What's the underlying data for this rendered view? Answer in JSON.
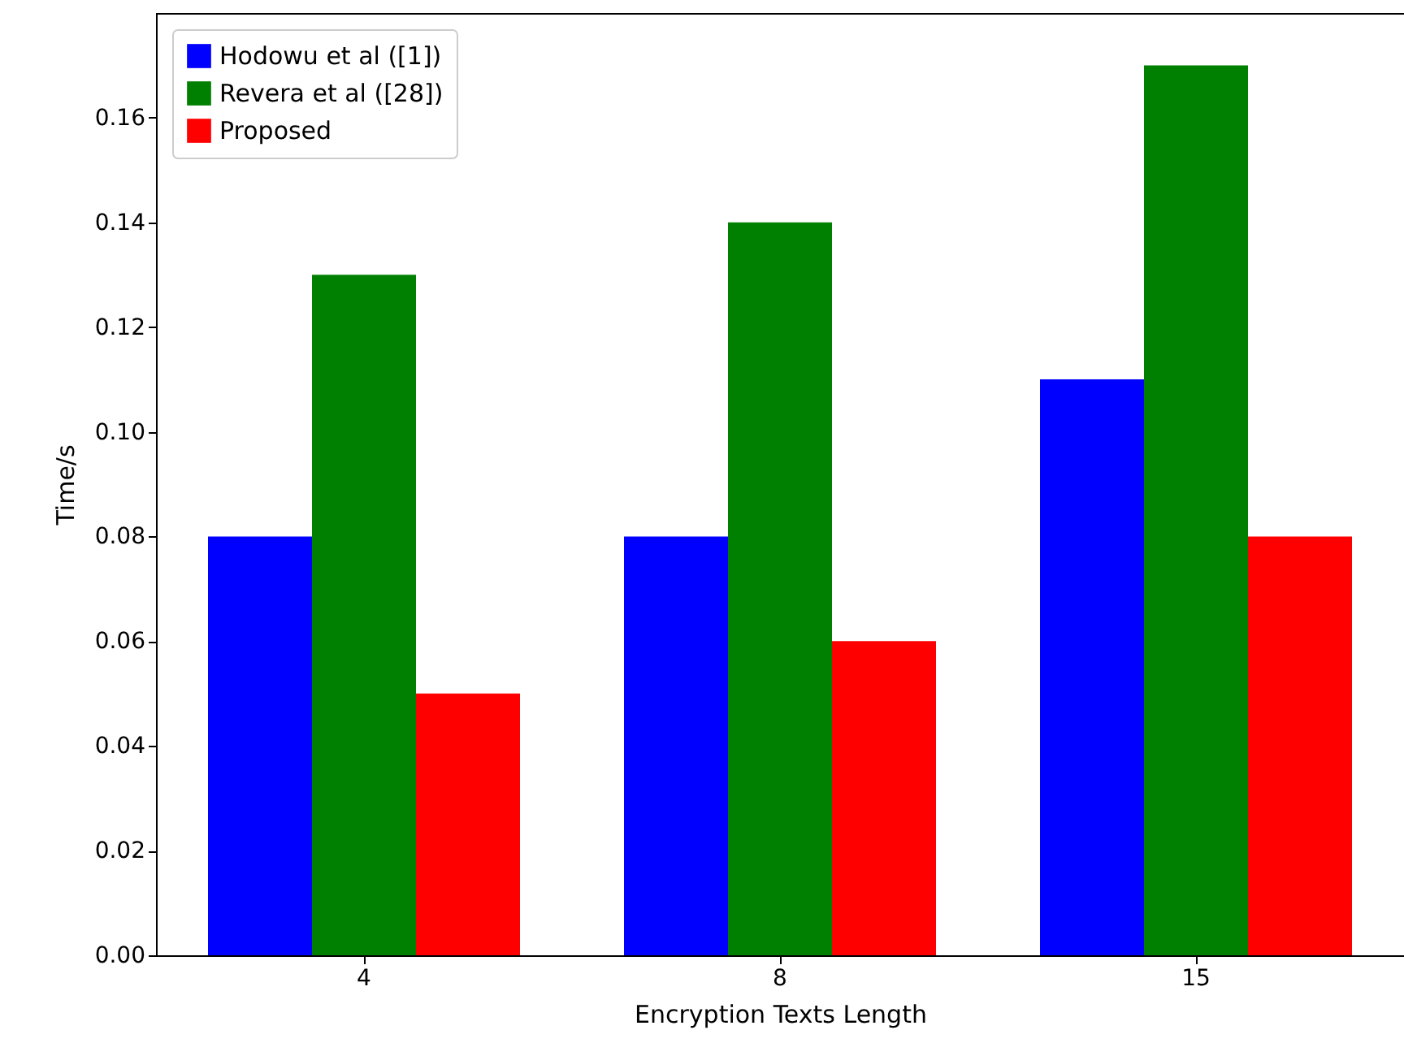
{
  "chart_data": {
    "type": "bar",
    "xlabel": "Encryption Texts Length",
    "ylabel": "Time/s",
    "categories": [
      "4",
      "8",
      "15"
    ],
    "series": [
      {
        "name": "Hodowu et al ([1])",
        "color": "#0000ff",
        "values": [
          0.08,
          0.08,
          0.11
        ]
      },
      {
        "name": "Revera et al ([28])",
        "color": "#008000",
        "values": [
          0.13,
          0.14,
          0.17
        ]
      },
      {
        "name": "Proposed",
        "color": "#ff0000",
        "values": [
          0.05,
          0.06,
          0.08
        ]
      }
    ],
    "ylim": [
      0,
      0.18
    ],
    "yticks": [
      {
        "value": 0,
        "label": "0.00"
      },
      {
        "value": 0.02,
        "label": "0.02"
      },
      {
        "value": 0.04,
        "label": "0.04"
      },
      {
        "value": 0.06,
        "label": "0.06"
      },
      {
        "value": 0.08,
        "label": "0.08"
      },
      {
        "value": 0.1,
        "label": "0.10"
      },
      {
        "value": 0.12,
        "label": "0.12"
      },
      {
        "value": 0.14,
        "label": "0.14"
      },
      {
        "value": 0.16,
        "label": "0.16"
      }
    ],
    "legend": "top left",
    "grid": false
  }
}
